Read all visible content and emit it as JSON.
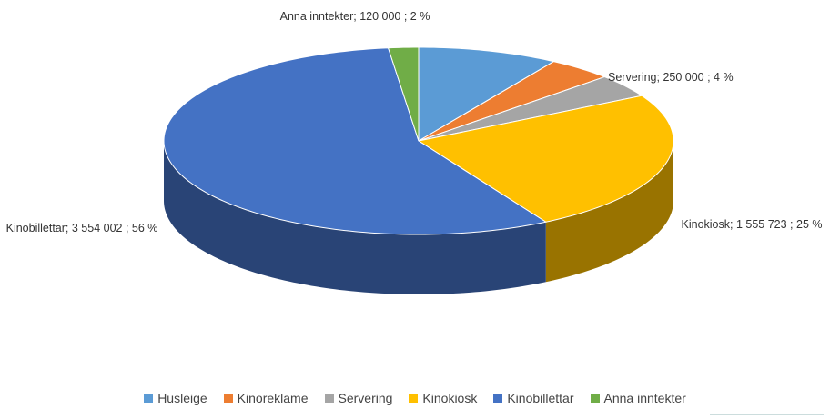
{
  "chart_data": {
    "type": "pie3d",
    "categories": [
      "Husleige",
      "Kinoreklame",
      "Servering",
      "Kinokiosk",
      "Kinobillettar",
      "Anna inntekter"
    ],
    "values": [
      560000,
      260000,
      250000,
      1555723,
      3554002,
      120000
    ],
    "value_labels": [
      null,
      null,
      "Servering; 250 000 ; 4 %",
      "Kinokiosk; 1 555 723 ; 25 %",
      "Kinobillettar; 3 554 002 ; 56 %",
      "Anna inntekter; 120 000 ; 2 %"
    ],
    "colors": [
      "#5b9bd5",
      "#ed7d31",
      "#a5a5a5",
      "#ffc000",
      "#4472c4",
      "#70ad47"
    ],
    "legend": "bottom"
  }
}
